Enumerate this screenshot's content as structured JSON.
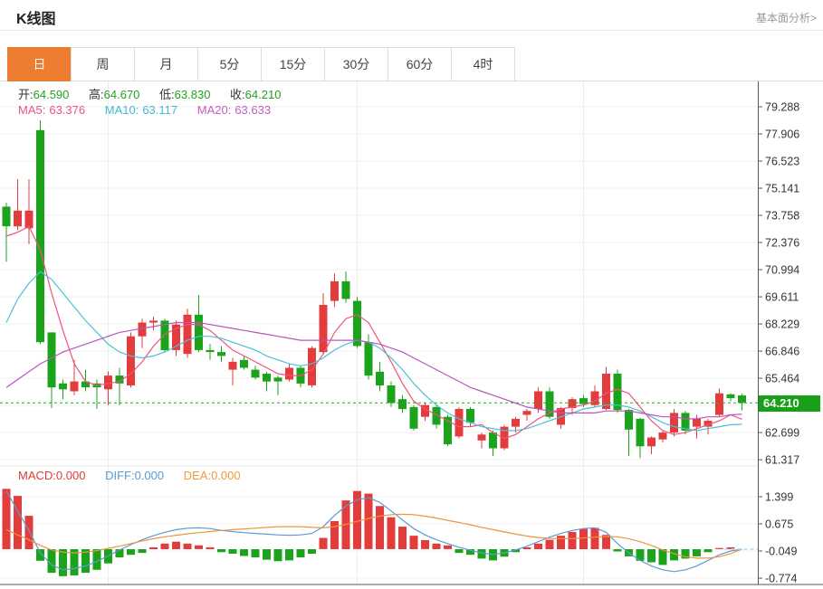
{
  "header": {
    "title": "K线图",
    "link": "基本面分析>"
  },
  "tabs": {
    "items": [
      "日",
      "周",
      "月",
      "5分",
      "15分",
      "30分",
      "60分",
      "4时"
    ],
    "active_index": 0
  },
  "ohlc": {
    "open_label": "开:",
    "open": "64.590",
    "high_label": "高:",
    "high": "64.670",
    "low_label": "低:",
    "low": "63.830",
    "close_label": "收:",
    "close": "64.210"
  },
  "ma_legend": {
    "ma5_label": "MA5:",
    "ma5_value": "63.376",
    "ma10_label": "MA10:",
    "ma10_value": "63.117",
    "ma20_label": "MA20:",
    "ma20_value": "63.633"
  },
  "macd_legend": {
    "macd_label": "MACD:",
    "macd_value": "0.000",
    "diff_label": "DIFF:",
    "diff_value": "0.000",
    "dea_label": "DEA:",
    "dea_value": "0.000"
  },
  "price_tag": {
    "text": "64.210"
  },
  "colors": {
    "up": "#e23c3c",
    "down": "#1ba41b",
    "ma5": "#f0527d",
    "ma10": "#4bc0d9",
    "ma20": "#bb55bb",
    "diff": "#5a9bd4",
    "dea": "#ee9540",
    "price_line": "#21ab21",
    "dashed_tail": "#aed6f1",
    "active_tab": "#ed7d31",
    "price_tag_bg": "#18a018"
  },
  "chart_data": {
    "type": "candlestick+macd",
    "current_price": 64.21,
    "x_grid_indices": [
      9,
      31,
      51
    ],
    "y_axis": {
      "tick_values": [
        79.288,
        77.906,
        76.523,
        75.141,
        73.758,
        72.376,
        70.994,
        69.611,
        68.229,
        66.846,
        65.464,
        62.699,
        61.317
      ]
    },
    "candles": [
      [
        74.2,
        74.4,
        71.4,
        73.2
      ],
      [
        73.2,
        75.6,
        73.0,
        74.0
      ],
      [
        73.1,
        75.6,
        72.3,
        74.0
      ],
      [
        78.1,
        78.6,
        67.2,
        67.3
      ],
      [
        67.8,
        67.8,
        63.95,
        65.0
      ],
      [
        65.2,
        65.4,
        64.4,
        64.9
      ],
      [
        64.8,
        66.4,
        64.6,
        65.3
      ],
      [
        65.3,
        65.9,
        64.8,
        65.0
      ],
      [
        65.2,
        65.4,
        63.9,
        65.0
      ],
      [
        64.9,
        65.8,
        64.1,
        65.6
      ],
      [
        65.6,
        66.0,
        64.1,
        65.2
      ],
      [
        65.1,
        67.8,
        65.0,
        67.6
      ],
      [
        67.6,
        68.5,
        67.0,
        68.3
      ],
      [
        68.3,
        68.6,
        67.9,
        68.4
      ],
      [
        68.4,
        68.5,
        66.8,
        66.9
      ],
      [
        66.9,
        68.4,
        66.6,
        68.2
      ],
      [
        66.7,
        69.0,
        66.5,
        68.7
      ],
      [
        68.7,
        69.7,
        66.8,
        66.9
      ],
      [
        66.9,
        67.2,
        66.4,
        66.8
      ],
      [
        66.8,
        67.1,
        66.3,
        66.6
      ],
      [
        65.9,
        66.5,
        65.1,
        66.3
      ],
      [
        66.4,
        66.6,
        65.9,
        66.0
      ],
      [
        65.9,
        66.1,
        65.4,
        65.5
      ],
      [
        65.7,
        65.8,
        64.8,
        65.3
      ],
      [
        65.5,
        65.6,
        64.6,
        65.3
      ],
      [
        65.4,
        66.2,
        65.3,
        66.0
      ],
      [
        66.0,
        66.1,
        65.0,
        65.2
      ],
      [
        65.1,
        67.1,
        65.0,
        67.0
      ],
      [
        66.8,
        69.8,
        66.7,
        69.2
      ],
      [
        69.4,
        70.8,
        69.1,
        70.4
      ],
      [
        70.4,
        70.9,
        69.3,
        69.5
      ],
      [
        69.4,
        69.6,
        67.0,
        67.1
      ],
      [
        67.3,
        67.7,
        65.4,
        65.6
      ],
      [
        65.8,
        66.3,
        64.8,
        65.1
      ],
      [
        65.1,
        65.3,
        64.0,
        64.2
      ],
      [
        64.4,
        64.6,
        63.7,
        63.9
      ],
      [
        64.0,
        64.1,
        62.8,
        62.9
      ],
      [
        63.5,
        64.2,
        63.3,
        64.1
      ],
      [
        64.0,
        64.1,
        62.9,
        63.1
      ],
      [
        63.5,
        63.6,
        62.0,
        62.1
      ],
      [
        62.5,
        64.0,
        62.4,
        63.9
      ],
      [
        63.9,
        64.0,
        63.0,
        63.2
      ],
      [
        62.3,
        62.7,
        61.9,
        62.6
      ],
      [
        62.7,
        62.8,
        61.5,
        61.9
      ],
      [
        61.9,
        63.1,
        61.8,
        63.0
      ],
      [
        63.0,
        63.5,
        62.7,
        63.4
      ],
      [
        63.6,
        63.9,
        63.3,
        63.8
      ],
      [
        63.9,
        65.0,
        63.7,
        64.8
      ],
      [
        64.8,
        65.0,
        63.4,
        63.5
      ],
      [
        63.1,
        64.0,
        62.9,
        63.95
      ],
      [
        63.95,
        64.5,
        63.6,
        64.4
      ],
      [
        64.45,
        64.6,
        64.0,
        64.15
      ],
      [
        64.1,
        65.1,
        64.0,
        64.8
      ],
      [
        63.9,
        66.05,
        63.85,
        65.7
      ],
      [
        65.7,
        65.9,
        63.7,
        63.85
      ],
      [
        63.85,
        63.9,
        61.5,
        62.85
      ],
      [
        63.4,
        63.45,
        61.4,
        62.0
      ],
      [
        62.0,
        62.5,
        61.6,
        62.45
      ],
      [
        62.35,
        62.8,
        62.2,
        62.7
      ],
      [
        62.7,
        63.9,
        62.5,
        63.7
      ],
      [
        63.7,
        63.8,
        62.6,
        62.8
      ],
      [
        63.0,
        63.6,
        62.4,
        63.4
      ],
      [
        63.0,
        63.4,
        62.6,
        63.3
      ],
      [
        63.6,
        64.95,
        63.5,
        64.7
      ],
      [
        64.65,
        64.7,
        64.3,
        64.45
      ],
      [
        64.59,
        64.67,
        63.83,
        64.21
      ]
    ],
    "ma5": [
      72.7,
      72.9,
      73.2,
      72.0,
      69.8,
      67.9,
      66.2,
      65.3,
      65.1,
      65.2,
      65.3,
      65.7,
      66.3,
      67.1,
      67.7,
      68.0,
      68.2,
      68.2,
      67.9,
      67.4,
      66.9,
      66.6,
      66.3,
      66.0,
      65.7,
      65.6,
      65.6,
      65.9,
      66.7,
      67.8,
      68.5,
      68.7,
      68.3,
      67.3,
      66.3,
      65.2,
      64.3,
      63.9,
      63.6,
      63.3,
      63.0,
      63.0,
      63.1,
      62.7,
      62.4,
      62.6,
      63.0,
      63.4,
      63.7,
      63.9,
      64.0,
      64.1,
      64.3,
      64.7,
      64.9,
      64.7,
      64.0,
      63.3,
      62.8,
      62.6,
      62.7,
      62.9,
      63.1,
      63.3,
      63.6,
      63.376
    ],
    "ma10": [
      68.3,
      69.5,
      70.3,
      70.9,
      70.5,
      69.8,
      69.1,
      68.4,
      67.8,
      67.2,
      66.8,
      66.6,
      66.5,
      66.6,
      66.8,
      67.1,
      67.4,
      67.6,
      67.6,
      67.5,
      67.3,
      67.1,
      66.9,
      66.6,
      66.4,
      66.2,
      66.1,
      66.2,
      66.5,
      66.9,
      67.2,
      67.4,
      67.3,
      67.0,
      66.5,
      65.9,
      65.2,
      64.6,
      64.1,
      63.7,
      63.4,
      63.2,
      63.0,
      62.9,
      62.8,
      62.8,
      62.9,
      63.1,
      63.3,
      63.5,
      63.7,
      63.9,
      64.0,
      64.1,
      64.1,
      64.0,
      63.8,
      63.5,
      63.2,
      63.0,
      62.9,
      62.8,
      62.9,
      63.0,
      63.1,
      63.117
    ],
    "ma20": [
      65.0,
      65.4,
      65.8,
      66.2,
      66.5,
      66.8,
      67.0,
      67.2,
      67.4,
      67.6,
      67.8,
      67.9,
      68.0,
      68.1,
      68.2,
      68.3,
      68.3,
      68.3,
      68.2,
      68.1,
      68.0,
      67.9,
      67.8,
      67.7,
      67.6,
      67.5,
      67.4,
      67.4,
      67.4,
      67.4,
      67.4,
      67.4,
      67.3,
      67.2,
      67.0,
      66.8,
      66.5,
      66.2,
      65.9,
      65.6,
      65.3,
      65.0,
      64.8,
      64.6,
      64.4,
      64.2,
      64.0,
      63.9,
      63.8,
      63.7,
      63.7,
      63.7,
      63.7,
      63.8,
      63.8,
      63.8,
      63.7,
      63.6,
      63.5,
      63.5,
      63.4,
      63.4,
      63.5,
      63.5,
      63.6,
      63.633
    ],
    "macd": {
      "tick_values": [
        1.399,
        0.675,
        -0.049,
        -0.774
      ],
      "hist": [
        1.61,
        1.42,
        0.89,
        -0.31,
        -0.63,
        -0.72,
        -0.7,
        -0.63,
        -0.55,
        -0.38,
        -0.22,
        -0.15,
        -0.1,
        0.05,
        0.15,
        0.2,
        0.15,
        0.1,
        0.05,
        -0.08,
        -0.12,
        -0.18,
        -0.22,
        -0.28,
        -0.32,
        -0.3,
        -0.22,
        -0.12,
        0.3,
        0.75,
        1.3,
        1.55,
        1.48,
        1.15,
        0.85,
        0.6,
        0.36,
        0.24,
        0.15,
        0.1,
        -0.1,
        -0.15,
        -0.25,
        -0.3,
        -0.2,
        -0.08,
        0.05,
        0.15,
        0.25,
        0.36,
        0.46,
        0.54,
        0.57,
        0.38,
        -0.06,
        -0.19,
        -0.31,
        -0.35,
        -0.42,
        -0.3,
        -0.25,
        -0.19,
        -0.08,
        0.03,
        0.05,
        0.0
      ],
      "diff": [
        1.55,
        1.02,
        0.5,
        -0.1,
        -0.42,
        -0.55,
        -0.52,
        -0.45,
        -0.33,
        -0.18,
        -0.02,
        0.12,
        0.25,
        0.36,
        0.45,
        0.52,
        0.56,
        0.57,
        0.55,
        0.5,
        0.47,
        0.44,
        0.42,
        0.4,
        0.38,
        0.37,
        0.38,
        0.42,
        0.6,
        0.9,
        1.15,
        1.32,
        1.37,
        1.25,
        1.02,
        0.78,
        0.55,
        0.38,
        0.25,
        0.15,
        0.05,
        -0.03,
        -0.1,
        -0.14,
        -0.1,
        -0.02,
        0.08,
        0.2,
        0.32,
        0.42,
        0.5,
        0.55,
        0.57,
        0.45,
        0.15,
        -0.1,
        -0.3,
        -0.45,
        -0.55,
        -0.6,
        -0.55,
        -0.45,
        -0.3,
        -0.15,
        -0.05,
        0.0
      ],
      "dea": [
        0.52,
        0.38,
        0.25,
        0.1,
        -0.02,
        -0.08,
        -0.1,
        -0.08,
        -0.04,
        0.02,
        0.08,
        0.15,
        0.22,
        0.28,
        0.33,
        0.37,
        0.41,
        0.44,
        0.47,
        0.5,
        0.52,
        0.54,
        0.56,
        0.58,
        0.6,
        0.6,
        0.6,
        0.58,
        0.57,
        0.6,
        0.66,
        0.74,
        0.82,
        0.88,
        0.92,
        0.93,
        0.92,
        0.88,
        0.83,
        0.77,
        0.71,
        0.65,
        0.58,
        0.52,
        0.46,
        0.4,
        0.35,
        0.31,
        0.29,
        0.28,
        0.28,
        0.3,
        0.32,
        0.34,
        0.33,
        0.28,
        0.2,
        0.1,
        -0.02,
        -0.12,
        -0.2,
        -0.24,
        -0.24,
        -0.2,
        -0.12,
        0.0
      ]
    }
  }
}
